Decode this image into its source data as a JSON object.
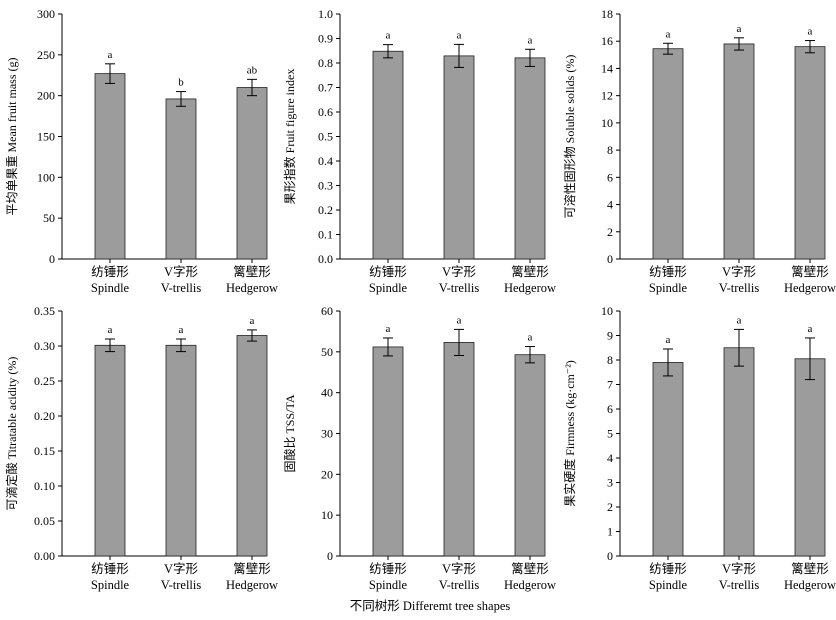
{
  "figure": {
    "xlabel": "不同树形 Differemt tree shapes"
  },
  "chart_data": [
    {
      "type": "bar",
      "categories": [
        "纺锤形|Spindle",
        "V字形|V-trellis",
        "篱壁形|Hedgerow"
      ],
      "values": [
        227,
        196,
        210
      ],
      "errors": [
        12,
        9,
        10
      ],
      "significance": [
        "a",
        "b",
        "ab"
      ],
      "ylabel": "平均单果重 Mean fruit mass (g)",
      "ylim": [
        0,
        300
      ],
      "yticks": [
        "0",
        "50",
        "100",
        "150",
        "200",
        "250",
        "300"
      ],
      "bar_color": "#9c9c9c"
    },
    {
      "type": "bar",
      "categories": [
        "纺锤形|Spindle",
        "V字形|V-trellis",
        "篱壁形|Hedgerow"
      ],
      "values": [
        0.848,
        0.829,
        0.821
      ],
      "errors": [
        0.027,
        0.047,
        0.035
      ],
      "significance": [
        "a",
        "a",
        "a"
      ],
      "ylabel": "果形指数 Fruit figure index",
      "ylim": [
        0,
        1.0
      ],
      "yticks": [
        "0.0",
        "0.1",
        "0.2",
        "0.3",
        "0.4",
        "0.5",
        "0.6",
        "0.7",
        "0.8",
        "0.9",
        "1.0"
      ],
      "bar_color": "#9c9c9c"
    },
    {
      "type": "bar",
      "categories": [
        "纺锤形|Spindle",
        "V字形|V-trellis",
        "篱壁形|Hedgerow"
      ],
      "values": [
        15.45,
        15.8,
        15.6
      ],
      "errors": [
        0.4,
        0.45,
        0.45
      ],
      "significance": [
        "a",
        "a",
        "a"
      ],
      "ylabel": "可溶性固形物 Soluble solids (%)",
      "ylim": [
        0,
        18
      ],
      "yticks": [
        "0",
        "2",
        "4",
        "6",
        "8",
        "10",
        "12",
        "14",
        "16",
        "18"
      ],
      "bar_color": "#9c9c9c"
    },
    {
      "type": "bar",
      "categories": [
        "纺锤形|Spindle",
        "V字形|V-trellis",
        "篱壁形|Hedgerow"
      ],
      "values": [
        0.301,
        0.301,
        0.315
      ],
      "errors": [
        0.009,
        0.009,
        0.008
      ],
      "significance": [
        "a",
        "a",
        "a"
      ],
      "ylabel": "可滴定酸 Titratable acidity (%)",
      "ylim": [
        0,
        0.35
      ],
      "yticks": [
        "0.00",
        "0.05",
        "0.10",
        "0.15",
        "0.20",
        "0.25",
        "0.30",
        "0.35"
      ],
      "bar_color": "#9c9c9c"
    },
    {
      "type": "bar",
      "categories": [
        "纺锤形|Spindle",
        "V字形|V-trellis",
        "篱壁形|Hedgerow"
      ],
      "values": [
        51.2,
        52.3,
        49.3
      ],
      "errors": [
        2.2,
        3.2,
        2.0
      ],
      "significance": [
        "a",
        "a",
        "a"
      ],
      "ylabel": "固酸比 TSS/TA",
      "ylim": [
        0,
        60
      ],
      "yticks": [
        "0",
        "10",
        "20",
        "30",
        "40",
        "50",
        "60"
      ],
      "bar_color": "#9c9c9c"
    },
    {
      "type": "bar",
      "categories": [
        "纺锤形|Spindle",
        "V字形|V-trellis",
        "篱壁形|Hedgerow"
      ],
      "values": [
        7.9,
        8.5,
        8.05
      ],
      "errors": [
        0.55,
        0.75,
        0.85
      ],
      "significance": [
        "a",
        "a",
        "a"
      ],
      "ylabel": "果实硬度 Firmness (kg·cm⁻²)",
      "ylim": [
        0,
        10
      ],
      "yticks": [
        "0",
        "1",
        "2",
        "3",
        "4",
        "5",
        "6",
        "7",
        "8",
        "9",
        "10"
      ],
      "bar_color": "#9c9c9c"
    }
  ]
}
